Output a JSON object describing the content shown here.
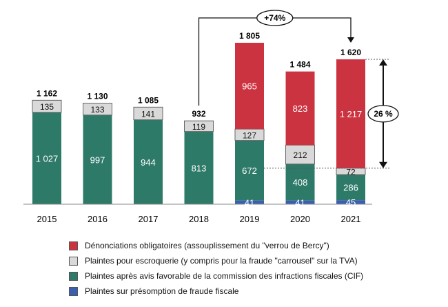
{
  "chart_data": {
    "type": "bar",
    "stacked": true,
    "categories": [
      "2015",
      "2016",
      "2017",
      "2018",
      "2019",
      "2020",
      "2021"
    ],
    "series": [
      {
        "name": "Plaintes sur présomption de fraude fiscale",
        "color": "#3a5fb0",
        "values": [
          0,
          0,
          0,
          0,
          41,
          41,
          45
        ]
      },
      {
        "name": "Plaintes après avis favorable de la commission des infractions fiscales (CIF)",
        "color": "#2e7a68",
        "values": [
          1027,
          997,
          944,
          813,
          672,
          408,
          286
        ]
      },
      {
        "name": "Plaintes pour escroquerie (y compris pour la fraude \"carrousel\" sur la TVA)",
        "color": "#d9d9d9",
        "values": [
          135,
          133,
          141,
          119,
          127,
          212,
          72
        ]
      },
      {
        "name": "Dénonciations obligatoires (assouplissement du \"verrou de Bercy\")",
        "color": "#cc3340",
        "values": [
          0,
          0,
          0,
          0,
          965,
          823,
          1217
        ]
      }
    ],
    "totals": [
      "1 162",
      "1 130",
      "1 085",
      "932",
      "1 805",
      "1 484",
      "1 620"
    ],
    "value_labels": [
      [
        "",
        "",
        "",
        "",
        "41",
        "41",
        "45"
      ],
      [
        "1 027",
        "997",
        "944",
        "813",
        "672",
        "408",
        "286"
      ],
      [
        "135",
        "133",
        "141",
        "119",
        "127",
        "212",
        "72"
      ],
      [
        "",
        "",
        "",
        "",
        "965",
        "823",
        "1 217"
      ]
    ],
    "annotations": {
      "growth": "+74%",
      "share": "26 %"
    },
    "ylim": [
      0,
      1805
    ],
    "legend_position": "bottom",
    "legend_order": [
      3,
      2,
      1,
      0
    ],
    "grid": false
  }
}
